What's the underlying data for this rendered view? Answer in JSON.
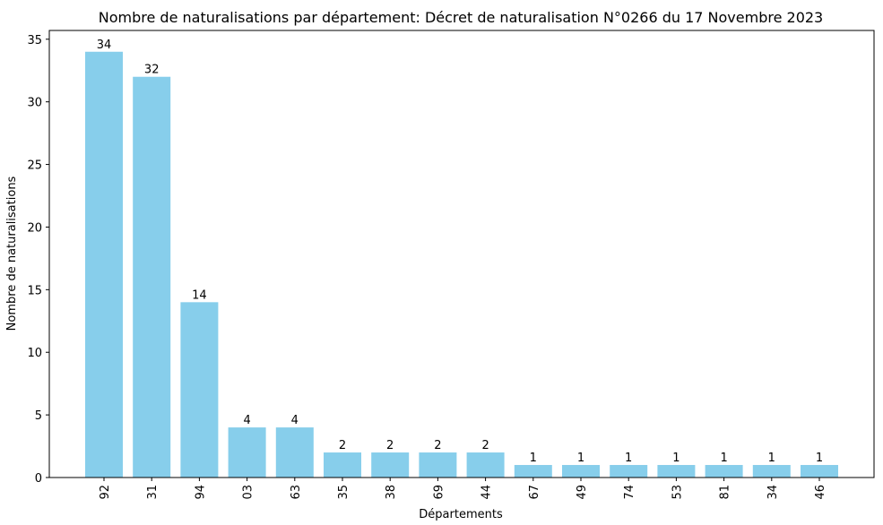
{
  "chart_data": {
    "type": "bar",
    "title": "Nombre de naturalisations par département: Décret de naturalisation N°0266 du 17 Novembre 2023",
    "xlabel": "Départements",
    "ylabel": "Nombre de naturalisations",
    "categories": [
      "92",
      "31",
      "94",
      "03",
      "63",
      "35",
      "38",
      "69",
      "44",
      "67",
      "49",
      "74",
      "53",
      "81",
      "34",
      "46"
    ],
    "values": [
      34,
      32,
      14,
      4,
      4,
      2,
      2,
      2,
      2,
      1,
      1,
      1,
      1,
      1,
      1,
      1
    ],
    "ylim": [
      0,
      35.7
    ],
    "yticks": [
      0,
      5,
      10,
      15,
      20,
      25,
      30,
      35
    ],
    "bar_color": "#87CEEB",
    "grid": false,
    "x_tick_rotation": "vertical",
    "data_labels": true
  }
}
